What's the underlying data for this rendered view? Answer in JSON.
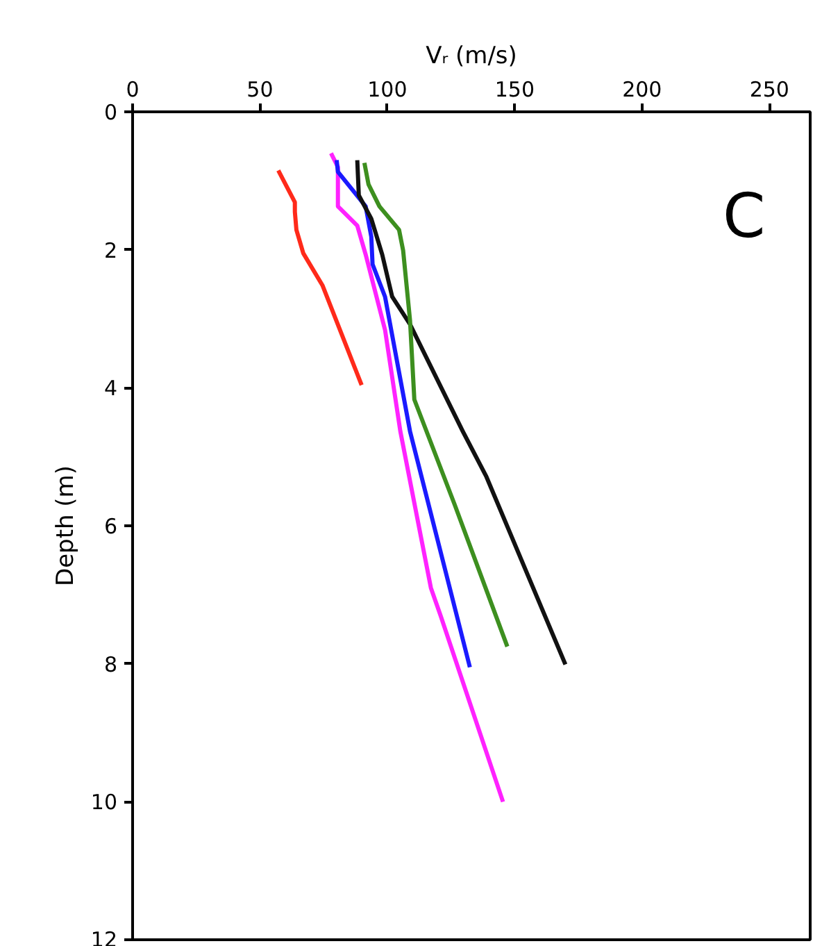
{
  "chart_data": {
    "type": "line",
    "xlabel": "Vᵣ (m/s)",
    "ylabel": "Depth (m)",
    "xlim": [
      0,
      266
    ],
    "xticks": [
      0,
      50,
      100,
      150,
      200,
      250
    ],
    "ylim": [
      12,
      0
    ],
    "yticks": [
      0,
      2,
      4,
      6,
      8,
      10,
      12
    ],
    "grid": false,
    "marker": "none",
    "line_style": "solid",
    "annotations": [
      "C"
    ],
    "series": [
      {
        "color": "#ff2a1a",
        "x": [
          57.2,
          63.7,
          63.7,
          64.3,
          67.0,
          74.6,
          89.9
        ],
        "values": [
          0.85,
          1.31,
          1.45,
          1.71,
          2.05,
          2.52,
          3.96
        ]
      },
      {
        "color": "#ff22ff",
        "x": [
          77.9,
          80.6,
          80.6,
          88.2,
          91.5,
          99.1,
          105.1,
          117.1,
          120.9,
          145.4
        ],
        "values": [
          0.6,
          0.8,
          1.37,
          1.65,
          2.07,
          3.16,
          4.63,
          6.9,
          7.3,
          10.0
        ]
      },
      {
        "color": "#1a1aff",
        "x": [
          80.1,
          80.6,
          91.5,
          93.7,
          94.2,
          99.1,
          108.9,
          132.4
        ],
        "values": [
          0.7,
          0.87,
          1.37,
          1.81,
          2.21,
          2.68,
          4.63,
          8.05
        ]
      },
      {
        "color": "#111111",
        "x": [
          88.2,
          88.8,
          93.7,
          98.0,
          101.9,
          108.9,
          129.6,
          138.9,
          169.9
        ],
        "values": [
          0.7,
          1.21,
          1.55,
          2.07,
          2.68,
          3.08,
          4.63,
          5.29,
          8.01
        ]
      },
      {
        "color": "#3d8f1f",
        "x": [
          91.0,
          92.6,
          96.9,
          104.6,
          106.2,
          108.9,
          110.6,
          126.4,
          147.1
        ],
        "values": [
          0.74,
          1.05,
          1.37,
          1.71,
          2.01,
          3.02,
          4.17,
          5.69,
          7.75
        ]
      }
    ]
  }
}
